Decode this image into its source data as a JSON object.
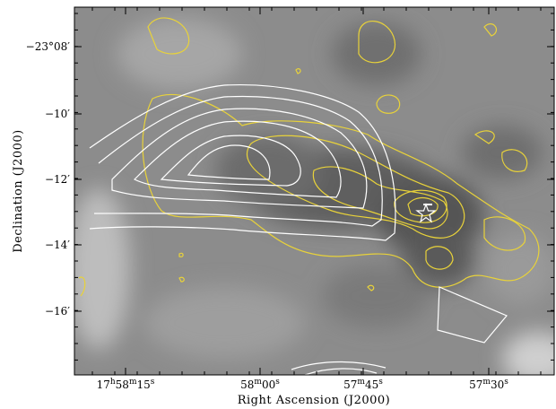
{
  "x_axis": {
    "label": "Right Ascension (J2000)",
    "ticks": [
      [
        "17",
        "h",
        "58",
        "m",
        "15",
        "s"
      ],
      [
        "58",
        "m",
        "00",
        "s"
      ],
      [
        "57",
        "m",
        "45",
        "s"
      ],
      [
        "57",
        "m",
        "30",
        "s"
      ]
    ]
  },
  "y_axis": {
    "label": "Declination (J2000)",
    "ticks": [
      "−23°08′",
      "−10′",
      "−12′",
      "−14′",
      "−16′"
    ]
  }
}
